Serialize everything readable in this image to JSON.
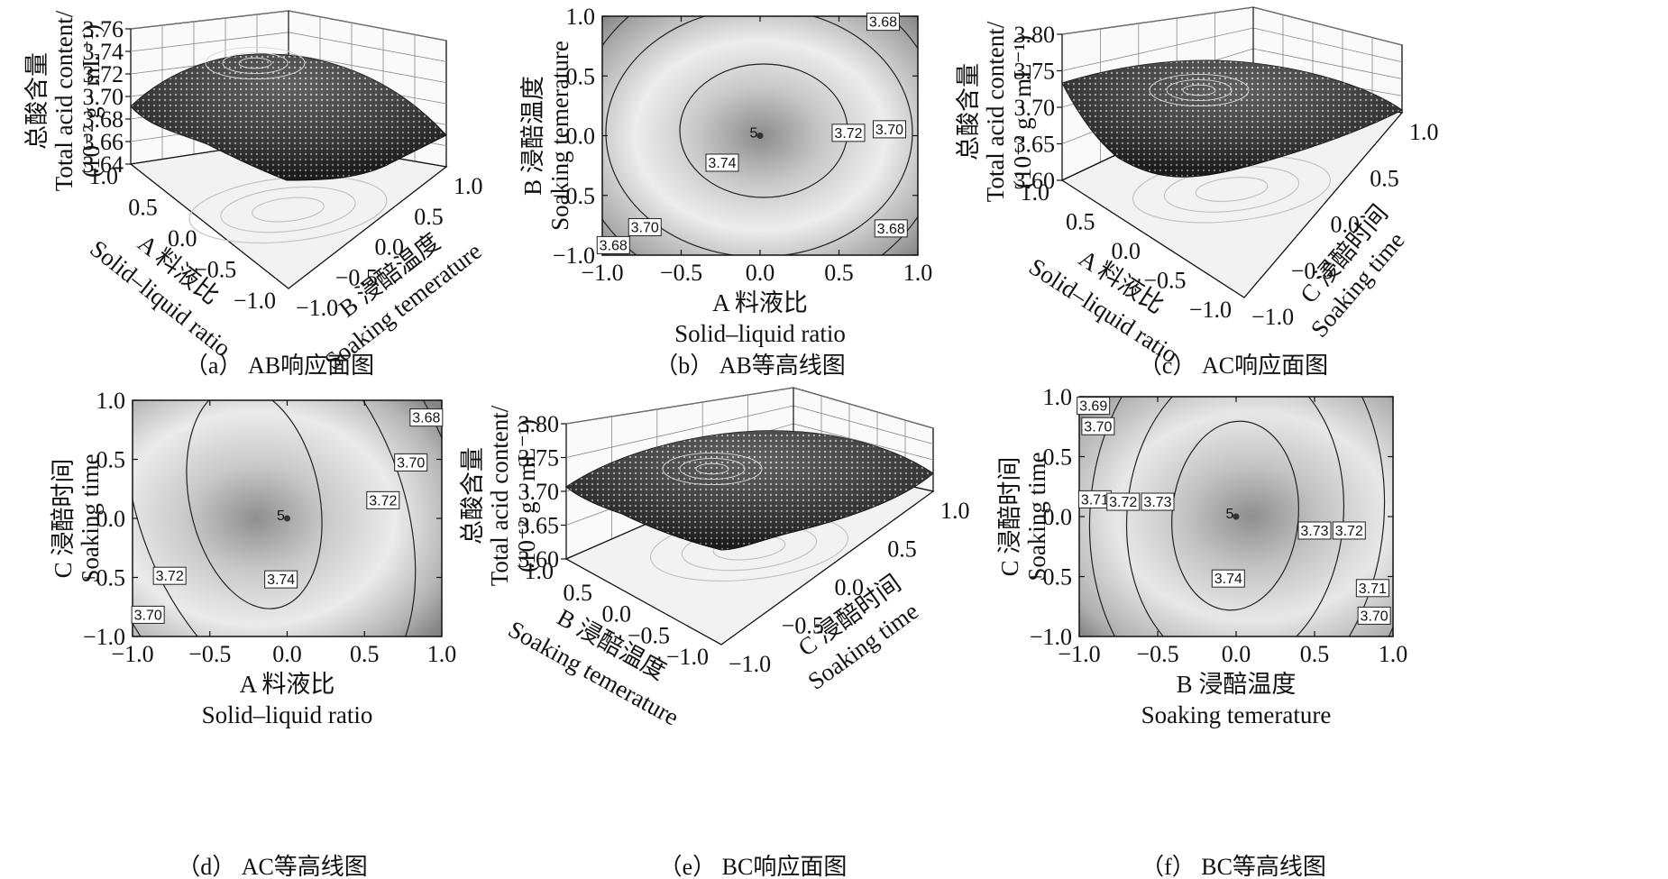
{
  "chart_data": [
    {
      "panel": "a",
      "type": "surface",
      "caption": "（a） AB响应面图",
      "zlabel_cn": "总酸含量",
      "zlabel_en": "Total acid content/",
      "zlabel_unit": "(10⁻² g · mL⁻¹)",
      "zticks": [
        "3.64",
        "3.66",
        "3.68",
        "3.70",
        "3.72",
        "3.74",
        "3.76"
      ],
      "zlim": [
        3.63,
        3.76
      ],
      "x_cn": "A 料液比",
      "x_en": "Solid–liquid ratio",
      "y_cn": "B 浸醅温度",
      "y_en": "Soaking temerature",
      "xticks": [
        "1.0",
        "0.5",
        "0.0",
        "−0.5",
        "−1.0"
      ],
      "yticks": [
        "−1.0",
        "−0.5",
        "0.0",
        "0.5",
        "1.0"
      ]
    },
    {
      "panel": "b",
      "type": "contour",
      "caption": "（b） AB等高线图",
      "xlabel_cn": "A 料液比",
      "xlabel_en": "Solid–liquid ratio",
      "ylabel_cn": "B 浸醅温度",
      "ylabel_en": "Soaking temerature",
      "xticks": [
        "−1.0",
        "−0.5",
        "0.0",
        "0.5",
        "1.0"
      ],
      "yticks": [
        "−1.0",
        "−0.5",
        "0.0",
        "0.5",
        "1.0"
      ],
      "contour_levels": [
        "3.74",
        "3.72",
        "3.70",
        "3.68"
      ],
      "contour_labels": [
        {
          "text": "3.68",
          "x": 0.78,
          "y": 0.95
        },
        {
          "text": "3.72",
          "x": 0.56,
          "y": 0.02
        },
        {
          "text": "3.70",
          "x": 0.82,
          "y": 0.05
        },
        {
          "text": "3.74",
          "x": -0.24,
          "y": -0.23
        },
        {
          "text": "3.70",
          "x": -0.73,
          "y": -0.77
        },
        {
          "text": "3.68",
          "x": -0.93,
          "y": -0.92
        },
        {
          "text": "3.68",
          "x": 0.83,
          "y": -0.78
        }
      ],
      "center_point": {
        "x": 0.0,
        "y": 0.0,
        "label": "5"
      }
    },
    {
      "panel": "c",
      "type": "surface",
      "caption": "（c） AC响应面图",
      "zlabel_cn": "总酸含量",
      "zlabel_en": "Total acid content/",
      "zlabel_unit": "(10⁻² g · mL⁻¹)",
      "zticks": [
        "3.60",
        "3.65",
        "3.70",
        "3.75",
        "3.80"
      ],
      "zlim": [
        3.58,
        3.8
      ],
      "x_cn": "A 料液比",
      "x_en": "Solid–liquid ratio",
      "y_cn": "C 浸醅时间",
      "y_en": "Soaking time",
      "xticks": [
        "1.0",
        "0.5",
        "0.0",
        "−0.5",
        "−1.0"
      ],
      "yticks": [
        "−1.0",
        "−0.5",
        "0.0",
        "0.5",
        "1.0"
      ]
    },
    {
      "panel": "d",
      "type": "contour",
      "caption": "（d） AC等高线图",
      "xlabel_cn": "A 料液比",
      "xlabel_en": "Solid–liquid ratio",
      "ylabel_cn": "C 浸醅时间",
      "ylabel_en": "Soaking time",
      "xticks": [
        "−1.0",
        "−0.5",
        "0.0",
        "0.5",
        "1.0"
      ],
      "yticks": [
        "−1.0",
        "−0.5",
        "0.0",
        "0.5",
        "1.0"
      ],
      "contour_levels": [
        "3.74",
        "3.72",
        "3.70",
        "3.68"
      ],
      "contour_labels": [
        {
          "text": "3.68",
          "x": 0.9,
          "y": 0.85
        },
        {
          "text": "3.70",
          "x": 0.8,
          "y": 0.47
        },
        {
          "text": "3.72",
          "x": 0.62,
          "y": 0.15
        },
        {
          "text": "3.72",
          "x": -0.76,
          "y": -0.49
        },
        {
          "text": "3.74",
          "x": -0.04,
          "y": -0.52
        },
        {
          "text": "3.70",
          "x": -0.9,
          "y": -0.82
        }
      ],
      "center_point": {
        "x": 0.0,
        "y": 0.0,
        "label": "5"
      }
    },
    {
      "panel": "e",
      "type": "surface",
      "caption": "（e） BC响应面图",
      "zlabel_cn": "总酸含量",
      "zlabel_en": "Total acid content/",
      "zlabel_unit": "(10⁻² g · mL⁻¹)",
      "zticks": [
        "3.60",
        "3.65",
        "3.70",
        "3.75",
        "3.80"
      ],
      "zlim": [
        3.58,
        3.8
      ],
      "x_cn": "B 浸醅温度",
      "x_en": "Soaking temerature",
      "y_cn": "C 浸醅时间",
      "y_en": "Soaking time",
      "xticks": [
        "1.0",
        "0.5",
        "0.0",
        "−0.5",
        "−1.0"
      ],
      "yticks": [
        "−1.0",
        "−0.5",
        "0.0",
        "0.5",
        "1.0"
      ]
    },
    {
      "panel": "f",
      "type": "contour",
      "caption": "（f） BC等高线图",
      "xlabel_cn": "B 浸醅温度",
      "xlabel_en": "Soaking temerature",
      "ylabel_cn": "C 浸醅时间",
      "ylabel_en": "Soaking time",
      "xticks": [
        "−1.0",
        "−0.5",
        "0.0",
        "0.5",
        "1.0"
      ],
      "yticks": [
        "−1.0",
        "−0.5",
        "0.0",
        "0.5",
        "1.0"
      ],
      "contour_levels": [
        "3.74",
        "3.73",
        "3.72",
        "3.71",
        "3.70",
        "3.69"
      ],
      "contour_labels": [
        {
          "text": "3.69",
          "x": -0.91,
          "y": 0.92
        },
        {
          "text": "3.70",
          "x": -0.88,
          "y": 0.75
        },
        {
          "text": "3.71",
          "x": -0.9,
          "y": 0.14
        },
        {
          "text": "3.72",
          "x": -0.72,
          "y": 0.12
        },
        {
          "text": "3.73",
          "x": -0.5,
          "y": 0.12
        },
        {
          "text": "3.73",
          "x": 0.5,
          "y": -0.12
        },
        {
          "text": "3.72",
          "x": 0.72,
          "y": -0.12
        },
        {
          "text": "3.74",
          "x": -0.05,
          "y": -0.52
        },
        {
          "text": "3.71",
          "x": 0.87,
          "y": -0.6
        },
        {
          "text": "3.70",
          "x": 0.88,
          "y": -0.83
        }
      ],
      "center_point": {
        "x": 0.0,
        "y": 0.0,
        "label": "5"
      }
    }
  ]
}
